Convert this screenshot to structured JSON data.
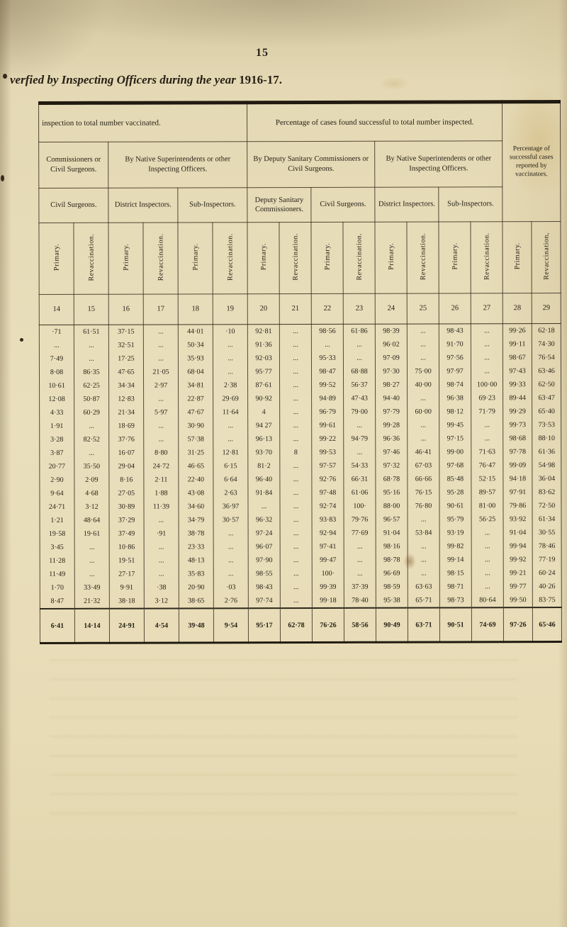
{
  "page": {
    "number": "15",
    "title_italic": "verfied by Inspecting Officers during the year",
    "title_year": "1916-17."
  },
  "table": {
    "section_headers": [
      "inspection to total number vaccinated.",
      "Percentage of cases found successful to total number inspected.",
      "Percentage of successful cases reported by vaccinators."
    ],
    "group_headers": [
      "Commissioners or Civil Surgeons.",
      "By Native Superintendents or other Inspecting Officers.",
      "By Deputy Sanitary Commissioners or Civil Surgeons.",
      "By Native Superintendents or other Inspecting Officers."
    ],
    "subgroup_headers": [
      "Civil Surgeons.",
      "District Inspectors.",
      "Sub-Inspectors.",
      "Deputy Sanitary Commissioners.",
      "Civil Surgeons.",
      "District Inspectors.",
      "Sub-Inspectors."
    ],
    "column_kind_labels": [
      "Primary.",
      "Revaccination.",
      "Primary.",
      "Revaccination.",
      "Primary.",
      "Revaccination.",
      "Primary.",
      "Revaccination.",
      "Primary.",
      "Revaccination.",
      "Primary.",
      "Revaccination.",
      "Primary.",
      "Revaccination.",
      "Primary.",
      "Revaccination,"
    ],
    "column_numbers": [
      "14",
      "15",
      "16",
      "17",
      "18",
      "19",
      "20",
      "21",
      "22",
      "23",
      "24",
      "25",
      "26",
      "27",
      "28",
      "29"
    ],
    "rows": [
      [
        "·71",
        "61·51",
        "37·15",
        "...",
        "44·01",
        "·10",
        "92·81",
        "...",
        "98·56",
        "61·86",
        "98·39",
        "...",
        "98·43",
        "...",
        "99·26",
        "62·18"
      ],
      [
        "...",
        "...",
        "32·51",
        "...",
        "50·34",
        "...",
        "91·36",
        "...",
        "...",
        "...",
        "96·02",
        "...",
        "91·70",
        "...",
        "99·11",
        "74·30"
      ],
      [
        "7·49",
        "...",
        "17·25",
        "...",
        "35·93",
        "...",
        "92·03",
        "...",
        "95·33",
        "...",
        "97·09",
        "...",
        "97·56",
        "...",
        "98·67",
        "76·54"
      ],
      [
        "8·08",
        "86·35",
        "47·65",
        "21·05",
        "68·04",
        "...",
        "95·77",
        "...",
        "98·47",
        "68·88",
        "97·30",
        "75·00",
        "97·97",
        "...",
        "97·43",
        "63·46"
      ],
      [
        "10·61",
        "62·25",
        "34·34",
        "2·97",
        "34·81",
        "2·38",
        "87·61",
        "...",
        "99·52",
        "56·37",
        "98·27",
        "40·00",
        "98·74",
        "100·00",
        "99·33",
        "62·50"
      ],
      [
        "12·08",
        "50·87",
        "12·83",
        "...",
        "22·87",
        "29·69",
        "90·92",
        "...",
        "94·89",
        "47·43",
        "94·40",
        "...",
        "96·38",
        "69·23",
        "89·44",
        "63·47"
      ],
      [
        "4·33",
        "60·29",
        "21·34",
        "5·97",
        "47·67",
        "11·64",
        "4",
        "...",
        "96·79",
        "79·00",
        "97·79",
        "60·00",
        "98·12",
        "71·79",
        "99·29",
        "65·40"
      ],
      [
        "1·91",
        "...",
        "18·69",
        "...",
        "30·90",
        "...",
        "94 27",
        "...",
        "99·61",
        "...",
        "99·28",
        "...",
        "99·45",
        "...",
        "99·73",
        "73·53"
      ],
      [
        "3·28",
        "82·52",
        "37·76",
        "...",
        "57·38",
        "...",
        "96·13",
        "...",
        "99·22",
        "94·79",
        "96·36",
        "...",
        "97·15",
        "...",
        "98·68",
        "88·10"
      ],
      [
        "3·87",
        "...",
        "16·07",
        "8·80",
        "31·25",
        "12·81",
        "93·70",
        "8",
        "99·53",
        "...",
        "97·46",
        "46·41",
        "99·00",
        "71·63",
        "97·78",
        "61·36"
      ],
      [
        "20·77",
        "35·50",
        "29·04",
        "24·72",
        "46·65",
        "6·15",
        "81·2",
        "...",
        "97·57",
        "54·33",
        "97·32",
        "67·03",
        "97·68",
        "76·47",
        "99·09",
        "54·98"
      ],
      [
        "2·90",
        "2·09",
        "8·16",
        "2·11",
        "22·40",
        "6·64",
        "96·40",
        "...",
        "92·76",
        "66·31",
        "68·78",
        "66·66",
        "85·48",
        "52·15",
        "94·18",
        "36·04"
      ],
      [
        "9·64",
        "4·68",
        "27·05",
        "1·88",
        "43·08",
        "2·63",
        "91·84",
        "...",
        "97·48",
        "61·06",
        "95·16",
        "76·15",
        "95·28",
        "89·57",
        "97·91",
        "83·62"
      ],
      [
        "24·71",
        "3·12",
        "30·89",
        "11·39",
        "34·60",
        "36·97",
        "...",
        "...",
        "92·74",
        "100·",
        "88·00",
        "76·80",
        "90·61",
        "81·00",
        "79·86",
        "72·50"
      ],
      [
        "1·21",
        "48·64",
        "37·29",
        "...",
        "34·79",
        "30·57",
        "96·32",
        "...",
        "93·83",
        "79·76",
        "96·57",
        "...",
        "95·79",
        "56·25",
        "93·92",
        "61·34"
      ],
      [
        "19·58",
        "19·61",
        "37·49",
        "·91",
        "38·78",
        "...",
        "97·24",
        "...",
        "92·94",
        "77·69",
        "91·04",
        "53·84",
        "93·19",
        "...",
        "91·04",
        "30·55"
      ],
      [
        "3·45",
        "...",
        "10·86",
        "...",
        "23·33",
        "...",
        "96·07",
        "...",
        "97·41",
        "...",
        "98·16",
        "...",
        "99·82",
        "...",
        "99·94",
        "78·46"
      ],
      [
        "11·28",
        "...",
        "19·51",
        "...",
        "48·13",
        "...",
        "97·90",
        "...",
        "99·47",
        "...",
        "98·78",
        "...",
        "99·14",
        "...",
        "99·92",
        "77·19"
      ],
      [
        "11·49",
        "...",
        "27·17",
        "...",
        "35·83",
        "...",
        "98·55",
        "...",
        "100·",
        "...",
        "96·69",
        "...",
        "98·15",
        "...",
        "99·21",
        "60·24"
      ],
      [
        "1·70",
        "33·49",
        "9·91",
        "·38",
        "20·90",
        "·03",
        "98·43",
        "...",
        "99·39",
        "37·39",
        "98·59",
        "63·63",
        "98·71",
        "...",
        "99·77",
        "40·26"
      ],
      [
        "8·47",
        "21·32",
        "38·18",
        "3·12",
        "38·65",
        "2·76",
        "97·74",
        "...",
        "99·18",
        "78·40",
        "95·38",
        "65·71",
        "98·73",
        "80·64",
        "99·50",
        "83·75"
      ]
    ],
    "total_row": [
      "6·41",
      "14·14",
      "24·91",
      "4·54",
      "39·48",
      "9·54",
      "95·17",
      "62·78",
      "76·26",
      "58·56",
      "90·49",
      "63·71",
      "90·51",
      "74·69",
      "97·26",
      "65·46"
    ]
  }
}
